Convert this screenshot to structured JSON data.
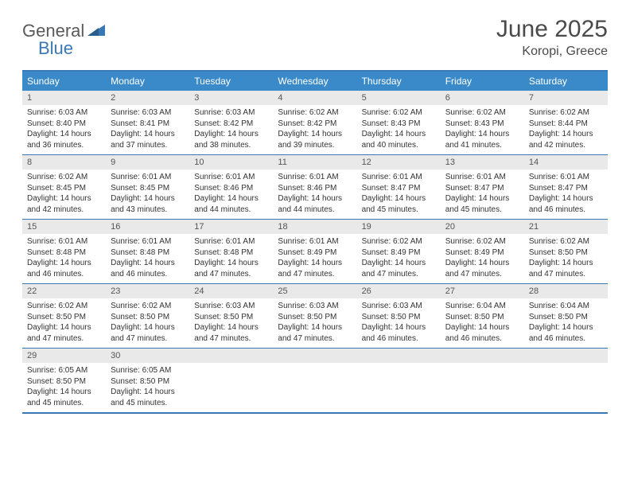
{
  "logo": {
    "text1": "General",
    "text2": "Blue"
  },
  "title": "June 2025",
  "location": "Koropi, Greece",
  "colors": {
    "header_bg": "#3a8ac9",
    "border": "#3a78b5",
    "daynum_bg": "#e9e9e9",
    "text": "#333333"
  },
  "day_names": [
    "Sunday",
    "Monday",
    "Tuesday",
    "Wednesday",
    "Thursday",
    "Friday",
    "Saturday"
  ],
  "weeks": [
    [
      {
        "n": "1",
        "sr": "6:03 AM",
        "ss": "8:40 PM",
        "dh": "14",
        "dm": "36"
      },
      {
        "n": "2",
        "sr": "6:03 AM",
        "ss": "8:41 PM",
        "dh": "14",
        "dm": "37"
      },
      {
        "n": "3",
        "sr": "6:03 AM",
        "ss": "8:42 PM",
        "dh": "14",
        "dm": "38"
      },
      {
        "n": "4",
        "sr": "6:02 AM",
        "ss": "8:42 PM",
        "dh": "14",
        "dm": "39"
      },
      {
        "n": "5",
        "sr": "6:02 AM",
        "ss": "8:43 PM",
        "dh": "14",
        "dm": "40"
      },
      {
        "n": "6",
        "sr": "6:02 AM",
        "ss": "8:43 PM",
        "dh": "14",
        "dm": "41"
      },
      {
        "n": "7",
        "sr": "6:02 AM",
        "ss": "8:44 PM",
        "dh": "14",
        "dm": "42"
      }
    ],
    [
      {
        "n": "8",
        "sr": "6:02 AM",
        "ss": "8:45 PM",
        "dh": "14",
        "dm": "42"
      },
      {
        "n": "9",
        "sr": "6:01 AM",
        "ss": "8:45 PM",
        "dh": "14",
        "dm": "43"
      },
      {
        "n": "10",
        "sr": "6:01 AM",
        "ss": "8:46 PM",
        "dh": "14",
        "dm": "44"
      },
      {
        "n": "11",
        "sr": "6:01 AM",
        "ss": "8:46 PM",
        "dh": "14",
        "dm": "44"
      },
      {
        "n": "12",
        "sr": "6:01 AM",
        "ss": "8:47 PM",
        "dh": "14",
        "dm": "45"
      },
      {
        "n": "13",
        "sr": "6:01 AM",
        "ss": "8:47 PM",
        "dh": "14",
        "dm": "45"
      },
      {
        "n": "14",
        "sr": "6:01 AM",
        "ss": "8:47 PM",
        "dh": "14",
        "dm": "46"
      }
    ],
    [
      {
        "n": "15",
        "sr": "6:01 AM",
        "ss": "8:48 PM",
        "dh": "14",
        "dm": "46"
      },
      {
        "n": "16",
        "sr": "6:01 AM",
        "ss": "8:48 PM",
        "dh": "14",
        "dm": "46"
      },
      {
        "n": "17",
        "sr": "6:01 AM",
        "ss": "8:48 PM",
        "dh": "14",
        "dm": "47"
      },
      {
        "n": "18",
        "sr": "6:01 AM",
        "ss": "8:49 PM",
        "dh": "14",
        "dm": "47"
      },
      {
        "n": "19",
        "sr": "6:02 AM",
        "ss": "8:49 PM",
        "dh": "14",
        "dm": "47"
      },
      {
        "n": "20",
        "sr": "6:02 AM",
        "ss": "8:49 PM",
        "dh": "14",
        "dm": "47"
      },
      {
        "n": "21",
        "sr": "6:02 AM",
        "ss": "8:50 PM",
        "dh": "14",
        "dm": "47"
      }
    ],
    [
      {
        "n": "22",
        "sr": "6:02 AM",
        "ss": "8:50 PM",
        "dh": "14",
        "dm": "47"
      },
      {
        "n": "23",
        "sr": "6:02 AM",
        "ss": "8:50 PM",
        "dh": "14",
        "dm": "47"
      },
      {
        "n": "24",
        "sr": "6:03 AM",
        "ss": "8:50 PM",
        "dh": "14",
        "dm": "47"
      },
      {
        "n": "25",
        "sr": "6:03 AM",
        "ss": "8:50 PM",
        "dh": "14",
        "dm": "47"
      },
      {
        "n": "26",
        "sr": "6:03 AM",
        "ss": "8:50 PM",
        "dh": "14",
        "dm": "46"
      },
      {
        "n": "27",
        "sr": "6:04 AM",
        "ss": "8:50 PM",
        "dh": "14",
        "dm": "46"
      },
      {
        "n": "28",
        "sr": "6:04 AM",
        "ss": "8:50 PM",
        "dh": "14",
        "dm": "46"
      }
    ],
    [
      {
        "n": "29",
        "sr": "6:05 AM",
        "ss": "8:50 PM",
        "dh": "14",
        "dm": "45"
      },
      {
        "n": "30",
        "sr": "6:05 AM",
        "ss": "8:50 PM",
        "dh": "14",
        "dm": "45"
      },
      null,
      null,
      null,
      null,
      null
    ]
  ],
  "labels": {
    "sunrise": "Sunrise:",
    "sunset": "Sunset:",
    "daylight": "Daylight:",
    "hours": "hours",
    "and": "and",
    "minutes": "minutes."
  }
}
